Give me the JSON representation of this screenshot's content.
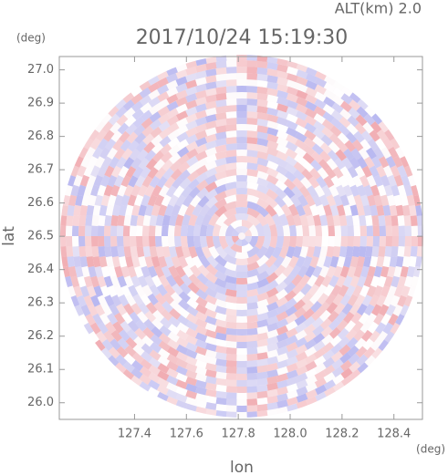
{
  "chart_data": {
    "type": "radar-ppi",
    "title": "2017/10/24 15:19:30",
    "annotation": "ALT(km) 2.0",
    "xlabel": "lon",
    "ylabel": "lat",
    "xunit": "(deg)",
    "yunit": "(deg)",
    "xlim": [
      127.11,
      128.51
    ],
    "ylim": [
      25.95,
      27.04
    ],
    "xticks": [
      {
        "value": 127.4,
        "label": "127.4"
      },
      {
        "value": 127.6,
        "label": "127.6"
      },
      {
        "value": 127.8,
        "label": "127.8"
      },
      {
        "value": 128.0,
        "label": "128.0"
      },
      {
        "value": 128.2,
        "label": "128.2"
      },
      {
        "value": 128.4,
        "label": "128.4"
      }
    ],
    "yticks": [
      {
        "value": 26.0,
        "label": "26.0"
      },
      26.1,
      26.2,
      26.3,
      26.4,
      26.5,
      26.6,
      26.7,
      26.8,
      26.9,
      {
        "value": 27.0,
        "label": "27.0"
      }
    ]
  }
}
